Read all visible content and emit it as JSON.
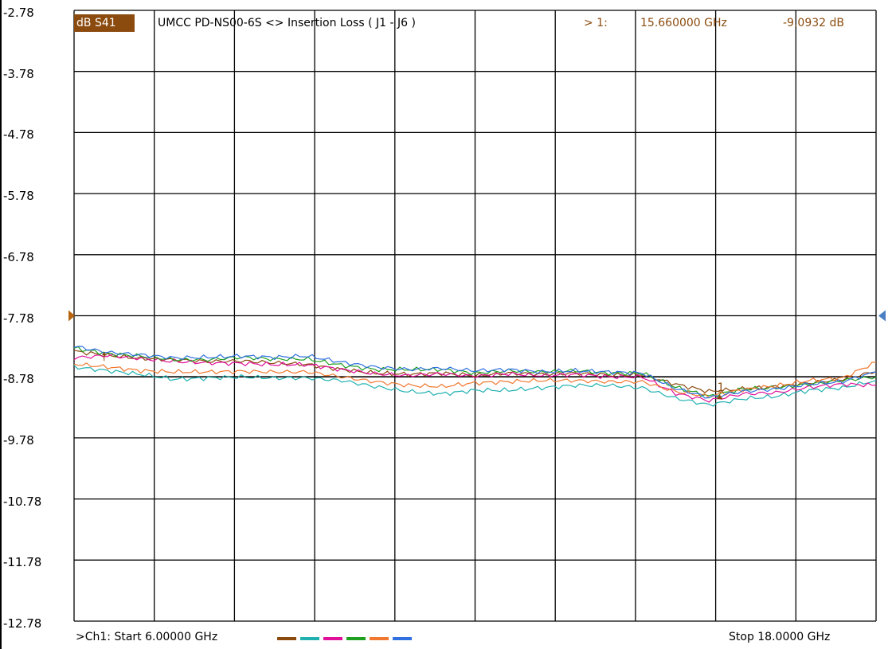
{
  "header": {
    "format_badge": "dB S41",
    "trace_title": "UMCC  PD-NS00-6S <> Insertion Loss ( J1 - J6 )",
    "marker_label": "> 1:",
    "marker_freq": "15.660000 GHz",
    "marker_value": "-9.0932 dB"
  },
  "footer": {
    "start_text": ">Ch1: Start  6.00000 GHz",
    "stop_text": "Stop  18.0000 GHz"
  },
  "colors": {
    "grid": "#000000",
    "reference_line": "#000000",
    "header_text": "#8b4a0e",
    "badge_bg": "#8b4a0e",
    "left_ref_marker": "#b8640f",
    "right_ref_marker": "#4a7fc4"
  },
  "chart_data": {
    "type": "line",
    "x_unit": "GHz",
    "y_unit": "dB",
    "xlim": [
      6.0,
      18.0
    ],
    "ylim": [
      -12.78,
      -2.78
    ],
    "yticks": [
      "-2.78",
      "-3.78",
      "-4.78",
      "-5.78",
      "-6.78",
      "-7.78",
      "-8.78",
      "-9.78",
      "-10.78",
      "-11.78",
      "-12.78"
    ],
    "grid": true,
    "x_divisions": 10,
    "y_divisions": 10,
    "reference_level": -8.78,
    "marker": {
      "label": "1",
      "x": 15.66,
      "y": -9.0932
    },
    "series": [
      {
        "color": "#8b4a0e",
        "x": [
          6.0,
          6.5,
          7.0,
          7.5,
          8.0,
          8.5,
          9.0,
          9.5,
          10.0,
          10.5,
          11.0,
          11.5,
          12.0,
          12.5,
          13.0,
          13.5,
          14.0,
          14.5,
          15.0,
          15.5,
          16.0,
          16.5,
          17.0,
          17.5,
          18.0
        ],
        "y": [
          -8.36,
          -8.43,
          -8.48,
          -8.5,
          -8.53,
          -8.52,
          -8.55,
          -8.58,
          -8.66,
          -8.72,
          -8.74,
          -8.72,
          -8.76,
          -8.72,
          -8.74,
          -8.72,
          -8.75,
          -8.75,
          -8.9,
          -9.02,
          -8.98,
          -8.94,
          -8.88,
          -8.82,
          -8.69
        ]
      },
      {
        "color": "#20b0b0",
        "x": [
          6.0,
          6.5,
          7.0,
          7.5,
          8.0,
          8.5,
          9.0,
          9.5,
          10.0,
          10.5,
          11.0,
          11.5,
          12.0,
          12.5,
          13.0,
          13.5,
          14.0,
          14.5,
          15.0,
          15.5,
          16.0,
          16.5,
          17.0,
          17.5,
          18.0
        ],
        "y": [
          -8.62,
          -8.68,
          -8.74,
          -8.82,
          -8.8,
          -8.78,
          -8.8,
          -8.8,
          -8.84,
          -8.94,
          -9.02,
          -9.06,
          -9.0,
          -9.0,
          -8.96,
          -8.92,
          -8.92,
          -8.96,
          -9.13,
          -9.24,
          -9.14,
          -9.1,
          -9.0,
          -8.96,
          -8.84
        ]
      },
      {
        "color": "#e0109a",
        "x": [
          6.0,
          6.5,
          7.0,
          7.5,
          8.0,
          8.5,
          9.0,
          9.5,
          10.0,
          10.5,
          11.0,
          11.5,
          12.0,
          12.5,
          13.0,
          13.5,
          14.0,
          14.5,
          15.0,
          15.5,
          16.0,
          16.5,
          17.0,
          17.5,
          18.0
        ],
        "y": [
          -8.47,
          -8.43,
          -8.48,
          -8.53,
          -8.55,
          -8.56,
          -8.58,
          -8.58,
          -8.66,
          -8.73,
          -8.76,
          -8.73,
          -8.77,
          -8.73,
          -8.76,
          -8.74,
          -8.78,
          -8.78,
          -9.05,
          -9.17,
          -9.06,
          -9.04,
          -8.95,
          -8.9,
          -8.92
        ]
      },
      {
        "color": "#20a020",
        "x": [
          6.0,
          6.5,
          7.0,
          7.5,
          8.0,
          8.5,
          9.0,
          9.5,
          10.0,
          10.5,
          11.0,
          11.5,
          12.0,
          12.5,
          13.0,
          13.5,
          14.0,
          14.5,
          15.0,
          15.5,
          16.0,
          16.5,
          17.0,
          17.5,
          18.0
        ],
        "y": [
          -8.31,
          -8.4,
          -8.44,
          -8.5,
          -8.5,
          -8.46,
          -8.49,
          -8.49,
          -8.59,
          -8.66,
          -8.66,
          -8.66,
          -8.72,
          -8.68,
          -8.7,
          -8.68,
          -8.72,
          -8.72,
          -8.95,
          -9.1,
          -8.98,
          -8.96,
          -8.9,
          -8.84,
          -8.78
        ]
      },
      {
        "color": "#f07830",
        "x": [
          6.0,
          6.5,
          7.0,
          7.5,
          8.0,
          8.5,
          9.0,
          9.5,
          10.0,
          10.5,
          11.0,
          11.5,
          12.0,
          12.5,
          13.0,
          13.5,
          14.0,
          14.5,
          15.0,
          15.5,
          16.0,
          16.5,
          17.0,
          17.5,
          18.0
        ],
        "y": [
          -8.57,
          -8.62,
          -8.68,
          -8.7,
          -8.7,
          -8.69,
          -8.7,
          -8.7,
          -8.78,
          -8.86,
          -8.92,
          -8.94,
          -8.88,
          -8.86,
          -8.84,
          -8.84,
          -8.86,
          -8.86,
          -9.02,
          -9.1,
          -8.99,
          -8.93,
          -8.84,
          -8.8,
          -8.54
        ]
      },
      {
        "color": "#3070e0",
        "x": [
          6.0,
          6.5,
          7.0,
          7.5,
          8.0,
          8.5,
          9.0,
          9.5,
          10.0,
          10.5,
          11.0,
          11.5,
          12.0,
          12.5,
          13.0,
          13.5,
          14.0,
          14.5,
          15.0,
          15.5,
          16.0,
          16.5,
          17.0,
          17.5,
          18.0
        ],
        "y": [
          -8.28,
          -8.38,
          -8.42,
          -8.47,
          -8.46,
          -8.44,
          -8.46,
          -8.44,
          -8.54,
          -8.62,
          -8.66,
          -8.64,
          -8.68,
          -8.66,
          -8.7,
          -8.68,
          -8.7,
          -8.72,
          -8.97,
          -9.12,
          -9.02,
          -8.98,
          -8.9,
          -8.86,
          -8.7
        ]
      }
    ]
  }
}
